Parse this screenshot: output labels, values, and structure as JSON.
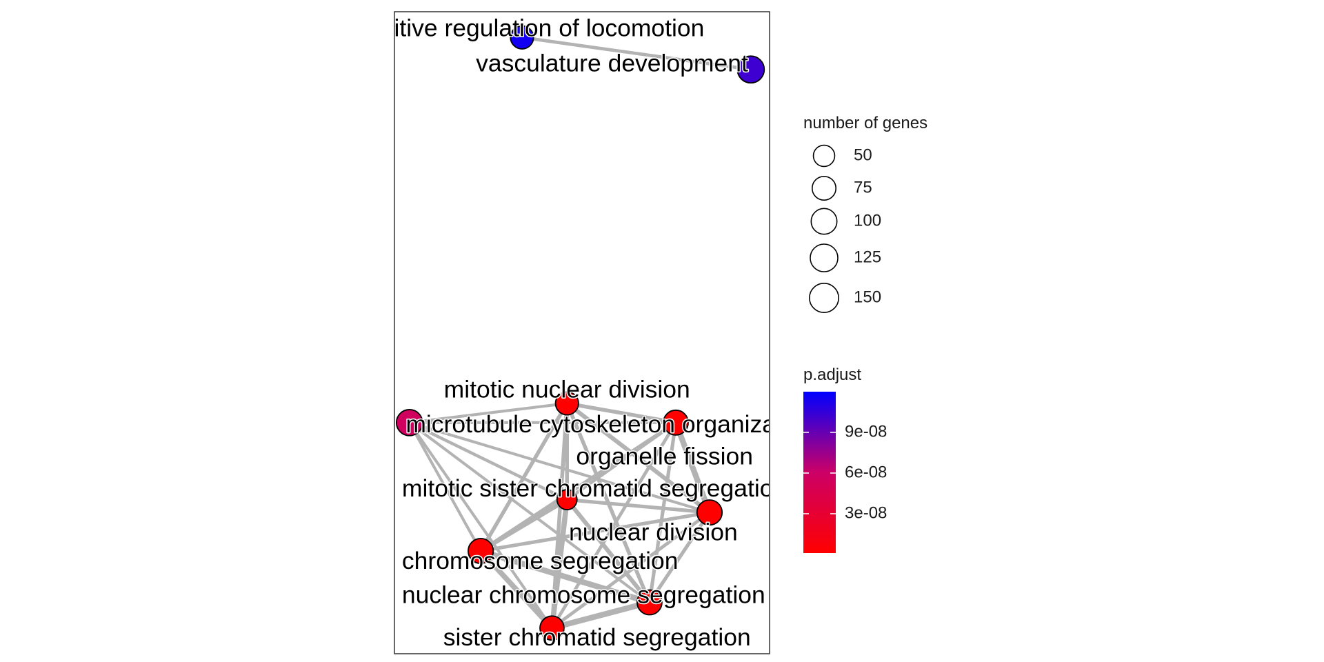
{
  "chart_data": {
    "type": "network",
    "nodes": [
      {
        "id": "positive regulation of locomotion",
        "label": "positive regulation of locomotion",
        "x": 0.34,
        "y": 0.96,
        "size": 35,
        "p_adjust": 1.15e-07
      },
      {
        "id": "vasculature development",
        "label": "vasculature development",
        "x": 0.95,
        "y": 0.91,
        "size": 65,
        "p_adjust": 1.02e-07
      },
      {
        "id": "mitotic nuclear division",
        "label": "mitotic nuclear division",
        "x": 0.46,
        "y": 0.39,
        "size": 35,
        "p_adjust": 1e-09
      },
      {
        "id": "microtubule cytoskeleton organization",
        "label": "microtubule cytoskeleton organization",
        "x": 0.04,
        "y": 0.36,
        "size": 58,
        "p_adjust": 5.6e-08
      },
      {
        "id": "organelle fission",
        "label": "organelle fission",
        "x": 0.75,
        "y": 0.36,
        "size": 48,
        "p_adjust": 1e-09
      },
      {
        "id": "mitotic sister chromatid segregation",
        "label": "mitotic sister chromatid segregation",
        "x": 0.46,
        "y": 0.24,
        "size": 18,
        "p_adjust": 1e-09
      },
      {
        "id": "nuclear division",
        "label": "nuclear division",
        "x": 0.84,
        "y": 0.22,
        "size": 50,
        "p_adjust": 1e-09
      },
      {
        "id": "chromosome segregation",
        "label": "chromosome segregation",
        "x": 0.23,
        "y": 0.16,
        "size": 50,
        "p_adjust": 1e-09
      },
      {
        "id": "nuclear chromosome segregation",
        "label": "nuclear chromosome segregation",
        "x": 0.68,
        "y": 0.08,
        "size": 48,
        "p_adjust": 1e-09
      },
      {
        "id": "sister chromatid segregation",
        "label": "sister chromatid segregation",
        "x": 0.42,
        "y": 0.04,
        "size": 42,
        "p_adjust": 1e-09
      }
    ],
    "edges": [
      {
        "source": "positive regulation of locomotion",
        "target": "vasculature development",
        "weight": 0.4
      },
      {
        "source": "microtubule cytoskeleton organization",
        "target": "mitotic nuclear division",
        "weight": 0.3
      },
      {
        "source": "microtubule cytoskeleton organization",
        "target": "organelle fission",
        "weight": 0.3
      },
      {
        "source": "microtubule cytoskeleton organization",
        "target": "mitotic sister chromatid segregation",
        "weight": 0.35
      },
      {
        "source": "microtubule cytoskeleton organization",
        "target": "nuclear division",
        "weight": 0.3
      },
      {
        "source": "microtubule cytoskeleton organization",
        "target": "chromosome segregation",
        "weight": 0.3
      },
      {
        "source": "microtubule cytoskeleton organization",
        "target": "nuclear chromosome segregation",
        "weight": 0.3
      },
      {
        "source": "microtubule cytoskeleton organization",
        "target": "sister chromatid segregation",
        "weight": 0.3
      },
      {
        "source": "mitotic nuclear division",
        "target": "organelle fission",
        "weight": 0.5
      },
      {
        "source": "mitotic nuclear division",
        "target": "nuclear division",
        "weight": 0.6
      },
      {
        "source": "mitotic nuclear division",
        "target": "mitotic sister chromatid segregation",
        "weight": 0.5
      },
      {
        "source": "mitotic nuclear division",
        "target": "chromosome segregation",
        "weight": 0.5
      },
      {
        "source": "mitotic nuclear division",
        "target": "nuclear chromosome segregation",
        "weight": 0.5
      },
      {
        "source": "mitotic nuclear division",
        "target": "sister chromatid segregation",
        "weight": 0.5
      },
      {
        "source": "organelle fission",
        "target": "nuclear division",
        "weight": 0.9
      },
      {
        "source": "organelle fission",
        "target": "mitotic sister chromatid segregation",
        "weight": 0.4
      },
      {
        "source": "organelle fission",
        "target": "chromosome segregation",
        "weight": 0.45
      },
      {
        "source": "organelle fission",
        "target": "nuclear chromosome segregation",
        "weight": 0.45
      },
      {
        "source": "organelle fission",
        "target": "sister chromatid segregation",
        "weight": 0.4
      },
      {
        "source": "mitotic sister chromatid segregation",
        "target": "nuclear division",
        "weight": 0.45
      },
      {
        "source": "mitotic sister chromatid segregation",
        "target": "chromosome segregation",
        "weight": 0.6
      },
      {
        "source": "mitotic sister chromatid segregation",
        "target": "nuclear chromosome segregation",
        "weight": 0.6
      },
      {
        "source": "mitotic sister chromatid segregation",
        "target": "sister chromatid segregation",
        "weight": 0.8
      },
      {
        "source": "nuclear division",
        "target": "chromosome segregation",
        "weight": 0.45
      },
      {
        "source": "nuclear division",
        "target": "nuclear chromosome segregation",
        "weight": 0.45
      },
      {
        "source": "nuclear division",
        "target": "sister chromatid segregation",
        "weight": 0.4
      },
      {
        "source": "chromosome segregation",
        "target": "nuclear chromosome segregation",
        "weight": 0.9
      },
      {
        "source": "chromosome segregation",
        "target": "sister chromatid segregation",
        "weight": 0.8
      },
      {
        "source": "nuclear chromosome segregation",
        "target": "sister chromatid segregation",
        "weight": 0.9
      }
    ],
    "size_legend": {
      "title": "number of genes",
      "breaks": [
        50,
        75,
        100,
        125,
        150
      ]
    },
    "color_legend": {
      "title": "p.adjust",
      "low_color": "#ff0000",
      "high_color": "#0000ff",
      "mid_color": "#cc0066",
      "range": [
        1e-09,
        1.2e-07
      ],
      "breaks": [
        3e-08,
        6e-08,
        9e-08
      ],
      "labels": [
        "3e-08",
        "6e-08",
        "9e-08"
      ]
    },
    "edge_color": "#b3b3b3",
    "node_outline_color": "#000000"
  }
}
